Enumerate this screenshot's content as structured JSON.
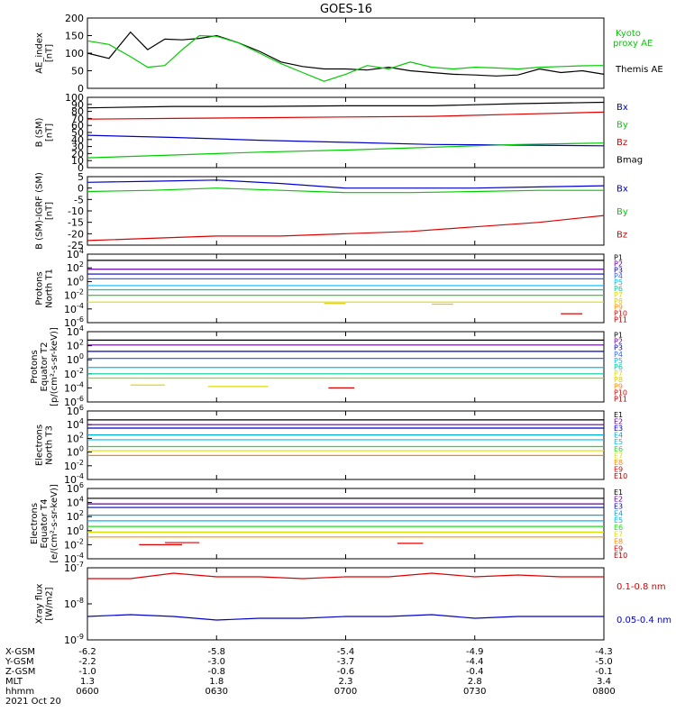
{
  "title": "GOES-16",
  "time_axis": {
    "tick_labels": [
      "0600",
      "0630",
      "0700",
      "0730",
      "0800"
    ],
    "ephemeris": [
      {
        "label": "X-GSM",
        "values": [
          "-6.2",
          "-5.8",
          "-5.4",
          "-4.9",
          "-4.3"
        ]
      },
      {
        "label": "Y-GSM",
        "values": [
          "-2.2",
          "-3.0",
          "-3.7",
          "-4.4",
          "-5.0"
        ]
      },
      {
        "label": "Z-GSM",
        "values": [
          "-1.0",
          "-0.8",
          "-0.6",
          "-0.4",
          "-0.1"
        ]
      },
      {
        "label": "MLT",
        "values": [
          "1.3",
          "1.8",
          "2.3",
          "2.8",
          "3.4"
        ]
      },
      {
        "label": "hhmm",
        "values": [
          "0600",
          "0630",
          "0700",
          "0730",
          "0800"
        ]
      }
    ],
    "date": "2021 Oct 20"
  },
  "colors": {
    "black": "#000000",
    "green": "#00cc00",
    "red": "#dd0000",
    "blue": "#0000cc",
    "brightgreen": "#22dd22",
    "cyan": "#00bbee",
    "purple": "#660099",
    "orange": "#ff8800",
    "yellow": "#dddd00",
    "darkred": "#aa0000"
  },
  "chart_data": [
    {
      "type": "line",
      "panel": "ae",
      "ylabel": [
        "AE_index",
        "[nT]"
      ],
      "ylim": [
        0,
        200
      ],
      "yscale": "linear",
      "yticks": [
        "0",
        "50",
        "100",
        "150",
        "200"
      ],
      "legend": [
        {
          "text": "Kyoto",
          "color": "#00cc00"
        },
        {
          "text": "proxy AE",
          "color": "#00cc00"
        },
        {
          "text": "Themis AE",
          "color": "#000000"
        }
      ],
      "x": [
        0,
        5,
        10,
        14,
        18,
        22,
        26,
        30,
        35,
        40,
        45,
        50,
        55,
        60,
        65,
        70,
        75,
        80,
        85,
        90,
        95,
        100,
        105,
        110,
        115,
        120
      ],
      "series": [
        {
          "name": "Themis AE",
          "color": "#000000",
          "values": [
            100,
            85,
            160,
            110,
            140,
            138,
            142,
            150,
            130,
            105,
            75,
            62,
            55,
            55,
            52,
            60,
            50,
            45,
            40,
            38,
            35,
            38,
            55,
            45,
            50,
            40
          ]
        },
        {
          "name": "Kyoto proxy AE",
          "color": "#00cc00",
          "values": [
            135,
            125,
            90,
            60,
            65,
            110,
            150,
            148,
            130,
            100,
            70,
            45,
            20,
            40,
            65,
            55,
            75,
            60,
            55,
            60,
            58,
            55,
            60,
            62,
            64,
            65
          ]
        }
      ]
    },
    {
      "type": "line",
      "panel": "bsm",
      "ylabel": [
        "B (SM)",
        "[nT]"
      ],
      "ylim": [
        0,
        100
      ],
      "yscale": "linear",
      "yticks": [
        "0",
        "10",
        "20",
        "30",
        "40",
        "50",
        "60",
        "70",
        "80",
        "90",
        "100"
      ],
      "legend": [
        {
          "text": "Bx",
          "color": "#0000cc"
        },
        {
          "text": "By",
          "color": "#00cc00"
        },
        {
          "text": "Bz",
          "color": "#dd0000"
        },
        {
          "text": "Bmag",
          "color": "#000000"
        }
      ],
      "x": [
        0,
        20,
        40,
        60,
        80,
        100,
        120
      ],
      "series": [
        {
          "name": "Bmag",
          "color": "#000000",
          "values": [
            85,
            87,
            87,
            88,
            88,
            91,
            93
          ]
        },
        {
          "name": "Bz",
          "color": "#dd0000",
          "values": [
            69,
            70,
            71,
            72,
            73,
            76,
            79
          ]
        },
        {
          "name": "Bx",
          "color": "#0000cc",
          "values": [
            46,
            43,
            39,
            36,
            33,
            32,
            31
          ]
        },
        {
          "name": "By",
          "color": "#00cc00",
          "values": [
            14,
            18,
            22,
            25,
            29,
            33,
            35
          ]
        }
      ]
    },
    {
      "type": "line",
      "panel": "bdiff",
      "ylabel": [
        "B (SM)-IGRF (SM)",
        "[nT]"
      ],
      "ylim": [
        -25,
        5
      ],
      "yscale": "linear",
      "yticks": [
        "-25",
        "-20",
        "-15",
        "-10",
        "-5",
        "0",
        "5"
      ],
      "legend": [
        {
          "text": "Bx",
          "color": "#0000cc"
        },
        {
          "text": "By",
          "color": "#00cc00"
        },
        {
          "text": "Bz",
          "color": "#dd0000"
        }
      ],
      "x": [
        0,
        15,
        30,
        45,
        60,
        75,
        90,
        105,
        120
      ],
      "series": [
        {
          "name": "Bx",
          "color": "#0000cc",
          "values": [
            2.5,
            3,
            3.5,
            2,
            0,
            0,
            0,
            0.5,
            1
          ]
        },
        {
          "name": "By",
          "color": "#00cc00",
          "values": [
            -1.5,
            -1,
            0,
            -1,
            -2,
            -2,
            -1.5,
            -1,
            -1
          ]
        },
        {
          "name": "Bz",
          "color": "#dd0000",
          "values": [
            -23,
            -22,
            -21,
            -21,
            -20,
            -19,
            -17,
            -15,
            -12
          ]
        }
      ]
    },
    {
      "type": "line",
      "panel": "protons1",
      "ylabel": [
        "Protons",
        "North T1"
      ],
      "yscale": "log",
      "ylim_exp": [
        -6,
        4
      ],
      "ytick_exps": [
        -6,
        -4,
        -2,
        0,
        2,
        4
      ],
      "legend": [
        "P1",
        "P2",
        "P3",
        "P4",
        "P5",
        "P6",
        "P7",
        "P8",
        "P9",
        "P10",
        "P11"
      ],
      "legend_colors": [
        "#000000",
        "#660099",
        "#0000cc",
        "#3366ff",
        "#00bbee",
        "#00cc99",
        "#dddd00",
        "#ddcc00",
        "#ff8800",
        "#dd0000",
        "#aa0000"
      ],
      "levels": [
        {
          "exp": 3.1,
          "color": "#000000"
        },
        {
          "exp": 1.8,
          "color": "#660099"
        },
        {
          "exp": 1.1,
          "color": "#0000cc"
        },
        {
          "exp": 0.4,
          "color": "#3366ff"
        },
        {
          "exp": -0.6,
          "color": "#00bbee"
        },
        {
          "exp": -1.2,
          "color": "#00cc99"
        },
        {
          "exp": -2.0,
          "color": "#22dd22"
        },
        {
          "exp": -3.0,
          "color": "#dddd00"
        }
      ],
      "segments": [
        {
          "x": [
            55,
            60
          ],
          "exp": -3.2,
          "color": "#ddcc00"
        },
        {
          "x": [
            80,
            85
          ],
          "exp": -3.3,
          "color": "#ddcc00"
        },
        {
          "x": [
            110,
            115
          ],
          "exp": -4.7,
          "color": "#dd0000"
        }
      ]
    },
    {
      "type": "line",
      "panel": "protons2",
      "ylabel": [
        "Protons",
        "Equator T2",
        "[p/(cm²-s-sr-keV)]"
      ],
      "yscale": "log",
      "ylim_exp": [
        -6,
        4
      ],
      "ytick_exps": [
        -6,
        -4,
        -2,
        0,
        2,
        4
      ],
      "legend": [
        "P1",
        "P2",
        "P3",
        "P4",
        "P5",
        "P6",
        "P7",
        "P8",
        "P9",
        "P10",
        "P11"
      ],
      "legend_colors": [
        "#000000",
        "#660099",
        "#0000cc",
        "#3366ff",
        "#00bbee",
        "#00cc99",
        "#dddd00",
        "#ddcc00",
        "#ff8800",
        "#dd0000",
        "#aa0000"
      ],
      "levels": [
        {
          "exp": 2.8,
          "color": "#000000"
        },
        {
          "exp": 2.1,
          "color": "#660099"
        },
        {
          "exp": 1.2,
          "color": "#0000cc"
        },
        {
          "exp": 0.2,
          "color": "#3366ff"
        },
        {
          "exp": -1.1,
          "color": "#00bbee"
        },
        {
          "exp": -2.0,
          "color": "#00cc99"
        },
        {
          "exp": -2.6,
          "color": "#88dd00"
        }
      ],
      "segments": [
        {
          "x": [
            10,
            18
          ],
          "exp": -3.6,
          "color": "#dddd00"
        },
        {
          "x": [
            28,
            42
          ],
          "exp": -3.8,
          "color": "#dddd00"
        },
        {
          "x": [
            56,
            62
          ],
          "exp": -4.0,
          "color": "#dd0000"
        }
      ]
    },
    {
      "type": "line",
      "panel": "electrons1",
      "ylabel": [
        "Electrons",
        "North T3"
      ],
      "yscale": "log",
      "ylim_exp": [
        -4,
        6
      ],
      "ytick_exps": [
        -4,
        -2,
        0,
        2,
        4,
        6
      ],
      "legend": [
        "E1",
        "E2",
        "E3",
        "E4",
        "E5",
        "E6",
        "E7",
        "E8",
        "E9",
        "E10"
      ],
      "legend_colors": [
        "#000000",
        "#660099",
        "#0000cc",
        "#00aadd",
        "#00bbee",
        "#22dd22",
        "#dddd00",
        "#ff8800",
        "#dd0000",
        "#aa0000"
      ],
      "levels": [
        {
          "exp": 4.7,
          "color": "#000000"
        },
        {
          "exp": 4.0,
          "color": "#660099"
        },
        {
          "exp": 3.5,
          "color": "#0000cc"
        },
        {
          "exp": 2.5,
          "color": "#00aadd"
        },
        {
          "exp": 1.8,
          "color": "#00bbee"
        },
        {
          "exp": 0.8,
          "color": "#22dd22"
        },
        {
          "exp": 0.2,
          "color": "#dddd00"
        },
        {
          "exp": -0.5,
          "color": "#ff8800"
        }
      ]
    },
    {
      "type": "line",
      "panel": "electrons2",
      "ylabel": [
        "Electrons",
        "Equator T4",
        "[e/(cm²-s-sr-keV)]"
      ],
      "yscale": "log",
      "ylim_exp": [
        -4,
        6
      ],
      "ytick_exps": [
        -4,
        -2,
        0,
        2,
        4,
        6
      ],
      "legend": [
        "E1",
        "E2",
        "E3",
        "E4",
        "E5",
        "E6",
        "E7",
        "E8",
        "E9",
        "E10"
      ],
      "legend_colors": [
        "#000000",
        "#660099",
        "#0000cc",
        "#00aadd",
        "#00bbee",
        "#22dd22",
        "#dddd00",
        "#ff8800",
        "#dd0000",
        "#aa0000"
      ],
      "levels": [
        {
          "exp": 4.6,
          "color": "#000000"
        },
        {
          "exp": 3.8,
          "color": "#660099"
        },
        {
          "exp": 3.3,
          "color": "#0000cc"
        },
        {
          "exp": 2.2,
          "color": "#00aadd"
        },
        {
          "exp": 1.4,
          "color": "#00bbee"
        },
        {
          "exp": 0.6,
          "color": "#22dd22"
        },
        {
          "exp": -0.2,
          "color": "#dddd00"
        },
        {
          "exp": -0.9,
          "color": "#ff8800"
        }
      ],
      "segments": [
        {
          "x": [
            12,
            22
          ],
          "exp": -2.0,
          "color": "#dd0000"
        },
        {
          "x": [
            18,
            26
          ],
          "exp": -1.7,
          "color": "#dd0000"
        },
        {
          "x": [
            72,
            78
          ],
          "exp": -1.8,
          "color": "#dd0000"
        }
      ]
    },
    {
      "type": "line",
      "panel": "xray",
      "ylabel": [
        "Xray flux",
        "[W/m2]"
      ],
      "yscale": "log",
      "ylim_exp": [
        -9,
        -7
      ],
      "ytick_exps": [
        -9,
        -8,
        -7
      ],
      "legend": [
        {
          "text": "0.1-0.8 nm",
          "color": "#dd0000"
        },
        {
          "text": "0.05-0.4 nm",
          "color": "#0000cc"
        }
      ],
      "x": [
        0,
        10,
        20,
        30,
        40,
        50,
        60,
        70,
        80,
        90,
        100,
        110,
        120
      ],
      "series": [
        {
          "name": "0.1-0.8 nm",
          "color": "#dd0000",
          "values": [
            -7.3,
            -7.3,
            -7.15,
            -7.25,
            -7.25,
            -7.3,
            -7.25,
            -7.25,
            -7.15,
            -7.25,
            -7.2,
            -7.25,
            -7.25
          ]
        },
        {
          "name": "0.05-0.4 nm",
          "color": "#0000cc",
          "values": [
            -8.35,
            -8.3,
            -8.35,
            -8.45,
            -8.4,
            -8.4,
            -8.35,
            -8.35,
            -8.3,
            -8.4,
            -8.35,
            -8.35,
            -8.35
          ]
        }
      ]
    }
  ]
}
